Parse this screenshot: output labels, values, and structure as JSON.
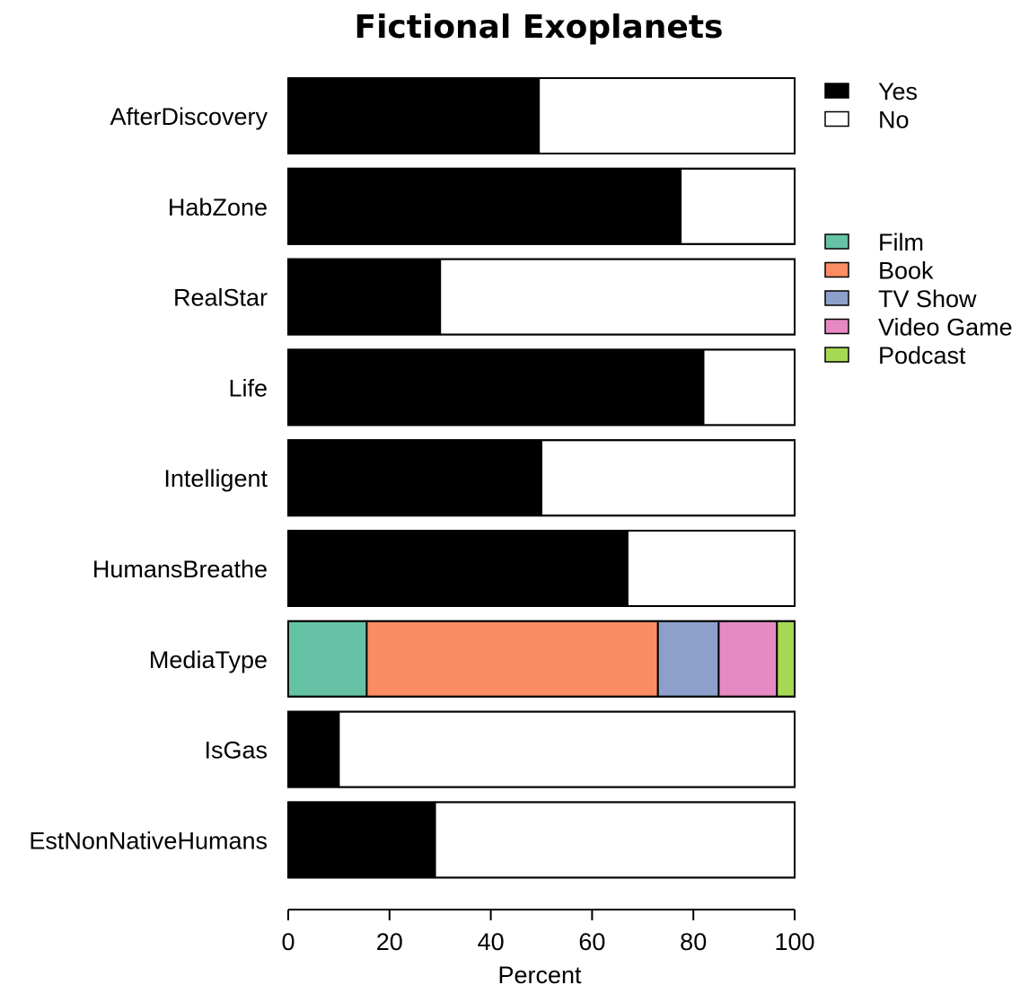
{
  "chart_data": {
    "type": "bar",
    "orientation": "horizontal",
    "stacked": true,
    "title": "Fictional Exoplanets",
    "xlabel": "Percent",
    "ylabel": "",
    "xlim": [
      0,
      100
    ],
    "xticks": [
      0,
      20,
      40,
      60,
      80,
      100
    ],
    "grid": false,
    "categories": [
      "AfterDiscovery",
      "HabZone",
      "RealStar",
      "Life",
      "Intelligent",
      "HumansBreathe",
      "MediaType",
      "IsGas",
      "EstNonNativeHumans"
    ],
    "binary_series": [
      {
        "name": "Yes",
        "color": "#000000"
      },
      {
        "name": "No",
        "color": "#ffffff"
      }
    ],
    "binary_values": {
      "AfterDiscovery": [
        49.5,
        50.5
      ],
      "HabZone": [
        77.5,
        22.5
      ],
      "RealStar": [
        30,
        70
      ],
      "Life": [
        82,
        18
      ],
      "Intelligent": [
        50,
        50
      ],
      "HumansBreathe": [
        67,
        33
      ],
      "IsGas": [
        10,
        90
      ],
      "EstNonNativeHumans": [
        29,
        71
      ]
    },
    "media_series": [
      {
        "name": "Film",
        "color": "#66c2a5",
        "value": 15.5
      },
      {
        "name": "Book",
        "color": "#fc8d62",
        "value": 57.5
      },
      {
        "name": "TV Show",
        "color": "#8da0cb",
        "value": 12
      },
      {
        "name": "Video Game",
        "color": "#e78ac3",
        "value": 11.5
      },
      {
        "name": "Podcast",
        "color": "#a6d854",
        "value": 3.5
      }
    ],
    "legend_placement": "right"
  }
}
